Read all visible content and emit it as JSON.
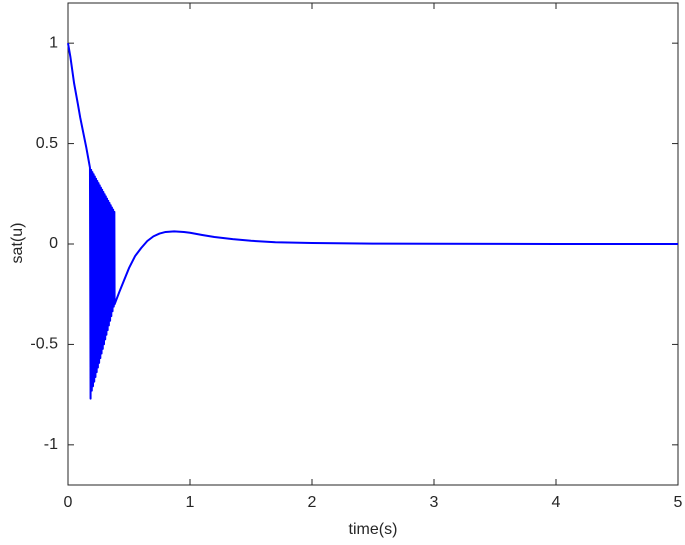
{
  "chart_data": {
    "type": "line",
    "xlabel": "time(s)",
    "ylabel": "sat(u)",
    "color": "#0000ff",
    "x": [
      0,
      0.02,
      0.05,
      0.08,
      0.1,
      0.13,
      0.15,
      0.18,
      0.185,
      0.19,
      0.195,
      0.2,
      0.205,
      0.21,
      0.215,
      0.22,
      0.225,
      0.23,
      0.235,
      0.24,
      0.245,
      0.25,
      0.255,
      0.26,
      0.265,
      0.27,
      0.275,
      0.28,
      0.285,
      0.29,
      0.295,
      0.3,
      0.305,
      0.31,
      0.315,
      0.32,
      0.325,
      0.33,
      0.335,
      0.34,
      0.345,
      0.35,
      0.355,
      0.36,
      0.365,
      0.37,
      0.375,
      0.38,
      0.382,
      0.42,
      0.46,
      0.5,
      0.55,
      0.6,
      0.65,
      0.7,
      0.75,
      0.8,
      0.87,
      0.95,
      1.0,
      1.1,
      1.2,
      1.35,
      1.5,
      1.7,
      2.0,
      2.5,
      3,
      4,
      5
    ],
    "values": [
      1,
      0.93,
      0.8,
      0.7,
      0.63,
      0.54,
      0.48,
      0.38,
      -0.77,
      0.369,
      -0.73,
      0.358,
      -0.708,
      0.347,
      -0.685,
      0.336,
      -0.662,
      0.325,
      -0.638,
      0.314,
      -0.615,
      0.303,
      -0.592,
      0.292,
      -0.568,
      0.281,
      -0.545,
      0.27,
      -0.522,
      0.259,
      -0.499,
      0.248,
      -0.475,
      0.237,
      -0.452,
      0.226,
      -0.429,
      0.215,
      -0.405,
      0.204,
      -0.382,
      0.193,
      -0.359,
      0.182,
      -0.335,
      0.171,
      -0.312,
      0.16,
      -0.3,
      -0.24,
      -0.18,
      -0.12,
      -0.06,
      -0.02,
      0.015,
      0.038,
      0.052,
      0.06,
      0.063,
      0.06,
      0.056,
      0.045,
      0.035,
      0.024,
      0.016,
      0.009,
      0.005,
      0.002,
      0.001,
      0,
      0
    ],
    "xlim": [
      0,
      5
    ],
    "xticks": [
      0,
      1,
      2,
      3,
      4,
      5
    ],
    "ylim": [
      -1.2,
      1.2
    ],
    "yticks": [
      -1,
      -0.5,
      0,
      0.5,
      1
    ],
    "grid": false
  }
}
